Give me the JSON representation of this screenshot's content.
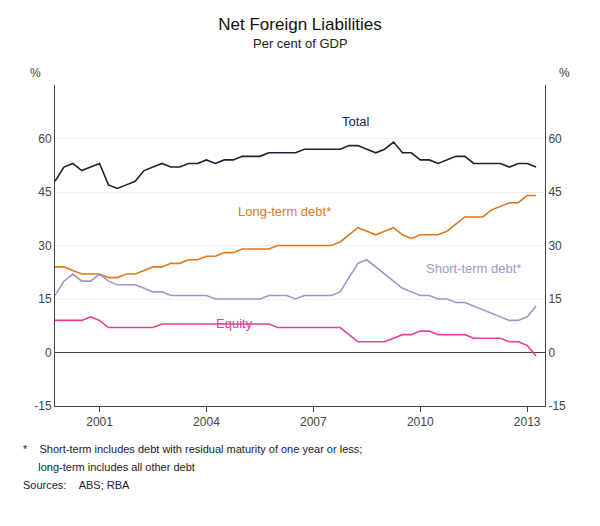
{
  "chart_data": {
    "type": "line",
    "title": "Net Foreign Liabilities",
    "subtitle": "Per cent of GDP",
    "ylabel": "%",
    "y2label": "%",
    "notes": [
      "*    Short-term includes debt with residual maturity of one year or less;",
      "     long-term includes all other debt",
      "Sources:    ABS; RBA"
    ],
    "x": [
      1999.75,
      2000.0,
      2000.25,
      2000.5,
      2000.75,
      2001.0,
      2001.25,
      2001.5,
      2001.75,
      2002.0,
      2002.25,
      2002.5,
      2002.75,
      2003.0,
      2003.25,
      2003.5,
      2003.75,
      2004.0,
      2004.25,
      2004.5,
      2004.75,
      2005.0,
      2005.25,
      2005.5,
      2005.75,
      2006.0,
      2006.25,
      2006.5,
      2006.75,
      2007.0,
      2007.25,
      2007.5,
      2007.75,
      2008.0,
      2008.25,
      2008.5,
      2008.75,
      2009.0,
      2009.25,
      2009.5,
      2009.75,
      2010.0,
      2010.25,
      2010.5,
      2010.75,
      2011.0,
      2011.25,
      2011.5,
      2011.75,
      2012.0,
      2012.25,
      2012.5,
      2012.75,
      2013.0,
      2013.25
    ],
    "series": [
      {
        "name": "Total",
        "color": "#1f1f3c",
        "values": [
          48,
          52,
          53,
          51,
          52,
          53,
          47,
          46,
          47,
          48,
          51,
          52,
          53,
          52,
          52,
          53,
          53,
          54,
          53,
          54,
          54,
          55,
          55,
          55,
          56,
          56,
          56,
          56,
          57,
          57,
          57,
          57,
          57,
          58,
          58,
          57,
          56,
          57,
          59,
          56,
          56,
          54,
          54,
          53,
          54,
          55,
          55,
          53,
          53,
          53,
          53,
          52,
          53,
          53,
          52
        ]
      },
      {
        "name": "Long-term debt*",
        "color": "#e07820",
        "values": [
          24,
          24,
          23,
          22,
          22,
          22,
          21,
          21,
          22,
          22,
          23,
          24,
          24,
          25,
          25,
          26,
          26,
          27,
          27,
          28,
          28,
          29,
          29,
          29,
          29,
          30,
          30,
          30,
          30,
          30,
          30,
          30,
          31,
          33,
          35,
          34,
          33,
          34,
          35,
          33,
          32,
          33,
          33,
          33,
          34,
          36,
          38,
          38,
          38,
          40,
          41,
          42,
          42,
          44,
          44
        ]
      },
      {
        "name": "Short-term debt*",
        "color": "#9999cc",
        "values": [
          16,
          20,
          22,
          20,
          20,
          22,
          20,
          19,
          19,
          19,
          18,
          17,
          17,
          16,
          16,
          16,
          16,
          16,
          15,
          15,
          15,
          15,
          15,
          15,
          16,
          16,
          16,
          15,
          16,
          16,
          16,
          16,
          17,
          21,
          25,
          26,
          24,
          22,
          20,
          18,
          17,
          16,
          16,
          15,
          15,
          14,
          14,
          13,
          12,
          11,
          10,
          9,
          9,
          10,
          13
        ]
      },
      {
        "name": "Equity",
        "color": "#e8409a",
        "values": [
          9,
          9,
          9,
          9,
          10,
          9,
          7,
          7,
          7,
          7,
          7,
          7,
          8,
          8,
          8,
          8,
          8,
          8,
          8,
          8,
          8,
          8,
          8,
          8,
          8,
          7,
          7,
          7,
          7,
          7,
          7,
          7,
          7,
          5,
          3,
          3,
          3,
          3,
          4,
          5,
          5,
          6,
          6,
          5,
          5,
          5,
          5,
          4,
          4,
          4,
          4,
          3,
          3,
          2,
          -1
        ]
      }
    ],
    "xlim": [
      1999.75,
      2013.5
    ],
    "xticks": [
      2001,
      2004,
      2007,
      2010,
      2013
    ],
    "ylim": [
      -15,
      75
    ],
    "yticks": [
      -15,
      0,
      15,
      30,
      45,
      60
    ],
    "y2lim": [
      -15,
      75
    ],
    "y2ticks": [
      -15,
      0,
      15,
      30,
      45,
      60
    ],
    "grid": "y"
  }
}
